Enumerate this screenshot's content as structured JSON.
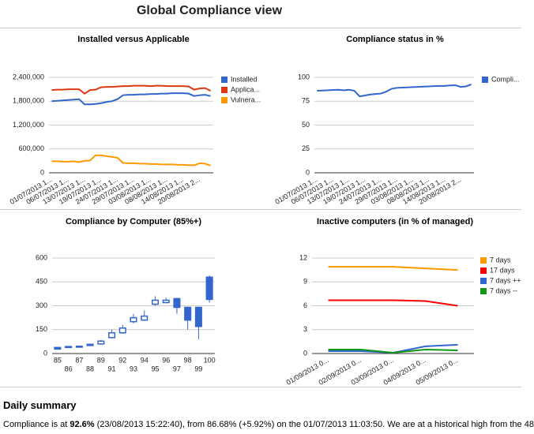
{
  "title": "Global Compliance view",
  "chart_data": [
    {
      "type": "line",
      "title": "Installed versus Applicable",
      "legend": "right",
      "grid": true,
      "categories": [
        "01/07/2013 1...",
        null,
        null,
        "06/07/2013 1...",
        null,
        null,
        "13/07/2013 1...",
        null,
        null,
        "19/07/2013 1...",
        null,
        null,
        "24/07/2013 1...",
        null,
        null,
        "29/07/2013 1...",
        null,
        null,
        "03/08/2013 1...",
        null,
        null,
        "08/08/2013 1...",
        null,
        null,
        "14/08/2013 1...",
        null,
        null,
        "20/08/2013 2...",
        null,
        null
      ],
      "ylim": [
        0,
        2400000
      ],
      "yticks": [
        0,
        {
          "value": 600000,
          "label": "600,000"
        },
        {
          "value": 1200000,
          "label": "1,200,000"
        },
        {
          "value": 1800000,
          "label": "1,800,000"
        },
        {
          "value": 2400000,
          "label": "2,400,000"
        }
      ],
      "series": [
        {
          "name": "Installed",
          "color": "#3366cc",
          "values": [
            1800000,
            1810000,
            1820000,
            1830000,
            1840000,
            1850000,
            1720000,
            1720000,
            1730000,
            1750000,
            1780000,
            1800000,
            1850000,
            1950000,
            1960000,
            1960000,
            1970000,
            1970000,
            1980000,
            1980000,
            1990000,
            1990000,
            2000000,
            2000000,
            2000000,
            1990000,
            1930000,
            1950000,
            1960000,
            1930000
          ]
        },
        {
          "name": "Applica...",
          "color": "#dc3912",
          "values": [
            2080000,
            2090000,
            2090000,
            2100000,
            2100000,
            2100000,
            1990000,
            2080000,
            2090000,
            2150000,
            2160000,
            2160000,
            2170000,
            2180000,
            2180000,
            2190000,
            2190000,
            2190000,
            2180000,
            2190000,
            2190000,
            2180000,
            2180000,
            2180000,
            2180000,
            2170000,
            2090000,
            2120000,
            2130000,
            2060000
          ]
        },
        {
          "name": "Vulnera...",
          "color": "#ff9900",
          "values": [
            290000,
            290000,
            280000,
            280000,
            290000,
            270000,
            300000,
            310000,
            440000,
            440000,
            420000,
            400000,
            380000,
            250000,
            240000,
            240000,
            230000,
            230000,
            220000,
            220000,
            210000,
            210000,
            210000,
            200000,
            200000,
            190000,
            190000,
            240000,
            230000,
            180000
          ]
        }
      ]
    },
    {
      "type": "line",
      "title": "Compliance status in %",
      "legend": "right",
      "grid": true,
      "categories": [
        "01/07/2013 1...",
        null,
        null,
        "06/07/2013 1...",
        null,
        null,
        "13/07/2013 1...",
        null,
        null,
        "19/07/2013 1...",
        null,
        null,
        "24/07/2013 1...",
        null,
        null,
        "29/07/2013 1...",
        null,
        null,
        "03/08/2013 1...",
        null,
        null,
        "08/08/2013 1...",
        null,
        null,
        "14/08/2013 1...",
        null,
        null,
        "20/08/2013 2...",
        null,
        null
      ],
      "ylim": [
        0,
        100
      ],
      "yticks": [
        0,
        25,
        50,
        75,
        100
      ],
      "series": [
        {
          "name": "Compli...",
          "color": "#3366cc",
          "values": [
            86,
            86.2,
            86.5,
            86.8,
            87,
            86.5,
            87,
            86,
            80,
            81,
            82,
            82.5,
            83,
            85,
            88,
            89,
            89.3,
            89.5,
            89.8,
            90,
            90.3,
            90.5,
            90.8,
            91,
            91,
            91.5,
            91.7,
            90,
            90.5,
            92.6
          ]
        }
      ]
    },
    {
      "type": "candlestick",
      "title": "Compliance by Computer (85%+)",
      "grid": true,
      "color": "#3366cc",
      "categories": [
        "85",
        "86",
        "87",
        "88",
        "89",
        "91",
        "92",
        "93",
        "94",
        "95",
        "96",
        "97",
        "98",
        "99",
        "100"
      ],
      "ylim": [
        0,
        600
      ],
      "yticks": [
        0,
        150,
        300,
        450,
        600
      ],
      "low": [
        25,
        36,
        38,
        48,
        55,
        95,
        125,
        190,
        205,
        300,
        315,
        250,
        150,
        90,
        320
      ],
      "open": [
        38,
        38,
        40,
        50,
        60,
        100,
        130,
        200,
        210,
        310,
        320,
        345,
        290,
        290,
        480
      ],
      "close": [
        28,
        44,
        46,
        58,
        78,
        130,
        160,
        225,
        235,
        335,
        335,
        290,
        210,
        170,
        340
      ],
      "high": [
        40,
        46,
        48,
        62,
        85,
        150,
        180,
        250,
        270,
        360,
        350,
        350,
        295,
        295,
        490
      ]
    },
    {
      "type": "line",
      "title": "Inactive computers (in % of managed)",
      "legend": "right",
      "grid": true,
      "categories": [
        "01/09/2013 0...",
        "02/09/2013 0...",
        "03/09/2013 0...",
        "04/09/2013 0...",
        "05/09/2013 0..."
      ],
      "ylim": [
        0,
        12
      ],
      "yticks": [
        0,
        3,
        6,
        9,
        12
      ],
      "series": [
        {
          "name": "7 days",
          "color": "#ff9900",
          "values": [
            10.9,
            10.9,
            10.9,
            10.7,
            10.5
          ]
        },
        {
          "name": "17 days",
          "color": "#ff0000",
          "values": [
            6.7,
            6.7,
            6.7,
            6.6,
            6.0
          ]
        },
        {
          "name": "7 days ++",
          "color": "#3366cc",
          "values": [
            0.3,
            0.3,
            0.1,
            0.9,
            1.1
          ]
        },
        {
          "name": "7 days --",
          "color": "#109618",
          "values": [
            0.5,
            0.5,
            0.1,
            0.5,
            0.4
          ]
        }
      ]
    }
  ],
  "summary": {
    "heading": "Daily summary",
    "text": [
      "Compliance is at ",
      "92.6%",
      " (23/08/2013 15:22:40), from 86.68% (+5.92%) on the 01/07/2013 11:03:50. We are at a historical high from the 48"
    ]
  }
}
